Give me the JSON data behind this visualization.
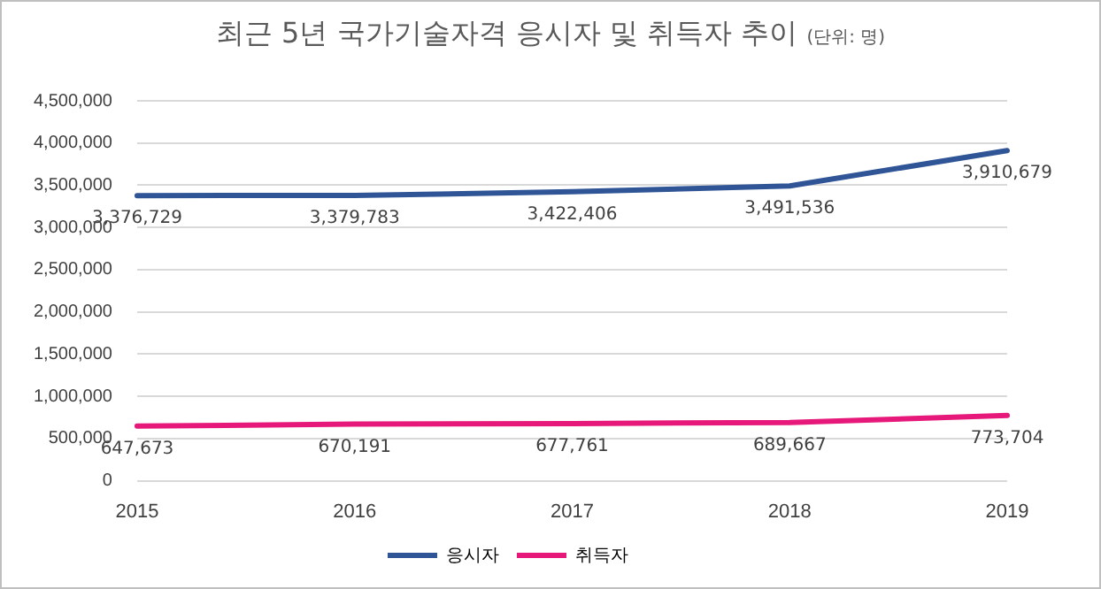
{
  "chart_data": {
    "type": "line",
    "title": "최근 5년 국가기술자격 응시자 및 취득자 추이",
    "subtitle": "(단위: 명)",
    "categories": [
      "2015",
      "2016",
      "2017",
      "2018",
      "2019"
    ],
    "series": [
      {
        "name": "응시자",
        "color": "#2f5597",
        "values": [
          3376729,
          3379783,
          3422406,
          3491536,
          3910679
        ],
        "value_labels": [
          "3,376,729",
          "3,379,783",
          "3,422,406",
          "3,491,536",
          "3,910,679"
        ]
      },
      {
        "name": "취득자",
        "color": "#e6197a",
        "values": [
          647673,
          670191,
          677761,
          689667,
          773704
        ],
        "value_labels": [
          "647,673",
          "670,191",
          "677,761",
          "689,667",
          "773,704"
        ]
      }
    ],
    "ylim": [
      0,
      4500000
    ],
    "yticks": [
      {
        "value": 0,
        "label": "0"
      },
      {
        "value": 500000,
        "label": "500,000"
      },
      {
        "value": 1000000,
        "label": "1,000,000"
      },
      {
        "value": 1500000,
        "label": "1,500,000"
      },
      {
        "value": 2000000,
        "label": "2,000,000"
      },
      {
        "value": 2500000,
        "label": "2,500,000"
      },
      {
        "value": 3000000,
        "label": "3,000,000"
      },
      {
        "value": 3500000,
        "label": "3,500,000"
      },
      {
        "value": 4000000,
        "label": "4,000,000"
      },
      {
        "value": 4500000,
        "label": "4,500,000"
      }
    ],
    "grid": "y",
    "legend": "bottom",
    "marker": "none",
    "line_style": "solid"
  }
}
